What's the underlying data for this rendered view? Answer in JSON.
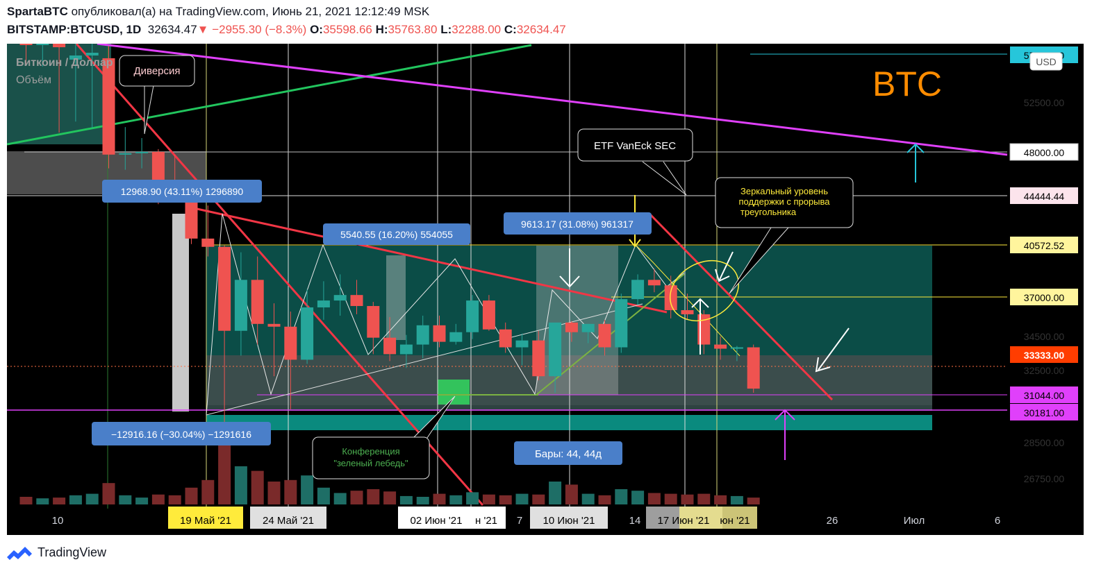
{
  "header": {
    "author": "SpartaBTC",
    "published_text": " опубликовал(а) на TradingView.com, Июнь 21, 2021 12:12:49 MSK",
    "symbol": "BITSTAMP:BTCUSD, 1D",
    "last": "32634.47",
    "change": "−2955.30 (−8.3%)",
    "o_label": "O:",
    "o": "35598.66",
    "h_label": "H:",
    "h": "35763.80",
    "l_label": "L:",
    "l": "32288.00",
    "c_label": "C:",
    "c": "32634.47"
  },
  "legend": {
    "series": "Биткоин / Доллар",
    "volume": "Объём"
  },
  "currency": "USD",
  "watermark": "BTC",
  "footer": {
    "brand": "TradingView"
  },
  "annotations": {
    "divergence": "Диверсия",
    "etf": "ETF VanEck  SEC",
    "mirror_1": "Зеркальный  уровень",
    "mirror_2": "поддержки с прорыва",
    "mirror_3": "треугольника",
    "conf_1": "Конференция",
    "conf_2": "\"зеленый лебедь\"",
    "measure_1": "12968.90 (43.11%) 1296890",
    "measure_2": "5540.55 (16.20%) 554055",
    "measure_3": "9613.17 (31.08%) 961317",
    "measure_4": "−12916.16 (−30.04%) −1291616",
    "bars": "Бары: 44, 44д"
  },
  "price_labels": {
    "p57": "57000.00",
    "p52500": "52500.00",
    "p48": "48000.00",
    "p44": "44444.44",
    "p40": "40572.52",
    "p37": "37000.00",
    "p34": "34500.00",
    "p33": "33333.00",
    "p32": "32500.00",
    "p31": "31044.00",
    "p30": "30181.00",
    "p28": "28500.00",
    "p26": "26750.00"
  },
  "time_labels": {
    "t10": "10",
    "may19": "19 Май '21",
    "may24": "24 Май '21",
    "jun02": "02 Июн '21",
    "jun_partial": "н '21",
    "d7": "7",
    "jun10": "10 Июн '21",
    "d14": "14",
    "jun17": "17 Июн '21",
    "jun_partial2": "юн '21",
    "d26": "26",
    "jul": "Июл",
    "d6": "6"
  },
  "colors": {
    "up": "#26a69a",
    "down": "#ef5350",
    "background": "#000000",
    "trend_red": "#f23645",
    "magenta": "#e040fb",
    "green_line": "#22c55e",
    "yellow_line": "#ffeb3b",
    "zone_teal": "#0b4d47",
    "label_blue": "#4a7fc9",
    "watermark": "#ff8c00"
  },
  "chart_data": {
    "type": "candlestick",
    "symbol": "BITSTAMP:BTCUSD",
    "interval": "1D",
    "ylim": [
      25000,
      58000
    ],
    "candles": [
      {
        "o": 58400,
        "h": 59500,
        "l": 56200,
        "c": 57600
      },
      {
        "o": 57600,
        "h": 58200,
        "l": 56000,
        "c": 57900
      },
      {
        "o": 57900,
        "h": 58400,
        "l": 51200,
        "c": 57400
      },
      {
        "o": 56500,
        "h": 58000,
        "l": 52000,
        "c": 56800
      },
      {
        "o": 56800,
        "h": 58000,
        "l": 51500,
        "c": 57000
      },
      {
        "o": 56600,
        "h": 57500,
        "l": 48600,
        "c": 49600
      },
      {
        "o": 49600,
        "h": 51600,
        "l": 48500,
        "c": 49700
      },
      {
        "o": 49700,
        "h": 50800,
        "l": 48600,
        "c": 49800
      },
      {
        "o": 49800,
        "h": 50000,
        "l": 46000,
        "c": 46800
      },
      {
        "o": 46800,
        "h": 49600,
        "l": 46400,
        "c": 46400
      },
      {
        "o": 46400,
        "h": 46600,
        "l": 43100,
        "c": 43500
      },
      {
        "o": 43500,
        "h": 45900,
        "l": 42200,
        "c": 42900
      },
      {
        "o": 42900,
        "h": 43000,
        "l": 30000,
        "c": 36800
      },
      {
        "o": 36800,
        "h": 42500,
        "l": 35000,
        "c": 40500
      },
      {
        "o": 40500,
        "h": 42200,
        "l": 35800,
        "c": 37300
      },
      {
        "o": 37300,
        "h": 38800,
        "l": 33500,
        "c": 37100
      },
      {
        "o": 37100,
        "h": 38200,
        "l": 31100,
        "c": 34700
      },
      {
        "o": 34700,
        "h": 39800,
        "l": 34400,
        "c": 38500
      },
      {
        "o": 38500,
        "h": 40400,
        "l": 37600,
        "c": 39000
      },
      {
        "o": 39000,
        "h": 40900,
        "l": 37900,
        "c": 39400
      },
      {
        "o": 39400,
        "h": 40500,
        "l": 38000,
        "c": 38600
      },
      {
        "o": 38600,
        "h": 38900,
        "l": 35100,
        "c": 36300
      },
      {
        "o": 36300,
        "h": 37800,
        "l": 34600,
        "c": 35100
      },
      {
        "o": 35100,
        "h": 36500,
        "l": 34100,
        "c": 35800
      },
      {
        "o": 35800,
        "h": 37900,
        "l": 34800,
        "c": 37200
      },
      {
        "o": 37200,
        "h": 37900,
        "l": 35600,
        "c": 36000
      },
      {
        "o": 36000,
        "h": 37300,
        "l": 35800,
        "c": 36700
      },
      {
        "o": 36700,
        "h": 39400,
        "l": 36200,
        "c": 39000
      },
      {
        "o": 39000,
        "h": 39400,
        "l": 36800,
        "c": 36900
      },
      {
        "o": 36900,
        "h": 37400,
        "l": 35200,
        "c": 35600
      },
      {
        "o": 35600,
        "h": 36600,
        "l": 34300,
        "c": 36100
      },
      {
        "o": 36100,
        "h": 36800,
        "l": 33200,
        "c": 33500
      },
      {
        "o": 33500,
        "h": 37300,
        "l": 32300,
        "c": 37400
      },
      {
        "o": 37400,
        "h": 37500,
        "l": 36000,
        "c": 36700
      },
      {
        "o": 36700,
        "h": 37300,
        "l": 35900,
        "c": 37300
      },
      {
        "o": 37300,
        "h": 37600,
        "l": 35000,
        "c": 35600
      },
      {
        "o": 35600,
        "h": 39500,
        "l": 35200,
        "c": 39100
      },
      {
        "o": 39100,
        "h": 40900,
        "l": 38700,
        "c": 40500
      },
      {
        "o": 40500,
        "h": 41300,
        "l": 39600,
        "c": 40100
      },
      {
        "o": 40100,
        "h": 40800,
        "l": 37700,
        "c": 38300
      },
      {
        "o": 38300,
        "h": 39500,
        "l": 37600,
        "c": 38000
      },
      {
        "o": 38000,
        "h": 38300,
        "l": 35100,
        "c": 35800
      },
      {
        "o": 35800,
        "h": 36400,
        "l": 34700,
        "c": 35500
      },
      {
        "o": 35500,
        "h": 35700,
        "l": 34600,
        "c": 35600
      },
      {
        "o": 35600,
        "h": 35800,
        "l": 32300,
        "c": 32600
      }
    ],
    "volume_relative": [
      0.1,
      0.08,
      0.09,
      0.12,
      0.14,
      0.28,
      0.12,
      0.09,
      0.13,
      0.12,
      0.22,
      0.32,
      0.9,
      0.5,
      0.44,
      0.3,
      0.32,
      0.38,
      0.22,
      0.15,
      0.18,
      0.2,
      0.17,
      0.11,
      0.1,
      0.14,
      0.12,
      0.16,
      0.13,
      0.12,
      0.14,
      0.13,
      0.3,
      0.26,
      0.14,
      0.12,
      0.2,
      0.18,
      0.15,
      0.14,
      0.13,
      0.14,
      0.12,
      0.11,
      0.09
    ],
    "levels": [
      57000,
      48000,
      44444.44,
      40572.52,
      37000,
      33333,
      31044,
      30181
    ],
    "last_price": 32634.47
  }
}
